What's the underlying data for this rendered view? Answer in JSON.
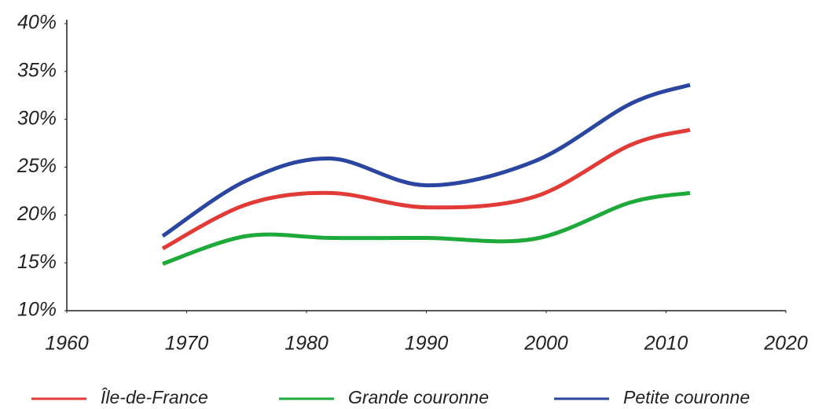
{
  "chart_data": {
    "type": "line",
    "x": [
      1968,
      1975,
      1982,
      1990,
      1999,
      2007,
      2012
    ],
    "series": [
      {
        "name": "Île-de-France",
        "color": "#e23a36",
        "values": [
          16.5,
          21.1,
          22.3,
          20.8,
          21.9,
          27.3,
          28.9
        ]
      },
      {
        "name": "Grande couronne",
        "color": "#1eaa3a",
        "values": [
          14.9,
          17.8,
          17.6,
          17.6,
          17.5,
          21.3,
          22.3
        ]
      },
      {
        "name": "Petite couronne",
        "color": "#2a46a0",
        "values": [
          17.8,
          23.6,
          25.9,
          23.1,
          25.6,
          31.6,
          33.6
        ]
      }
    ],
    "xlim": [
      1960,
      2020
    ],
    "xticks": [
      1960,
      1970,
      1980,
      1990,
      2000,
      2010,
      2020
    ],
    "ylim": [
      10,
      40
    ],
    "yticks": [
      {
        "value": 10,
        "label": "10%"
      },
      {
        "value": 15,
        "label": "15%"
      },
      {
        "value": 20,
        "label": "20%"
      },
      {
        "value": 25,
        "label": "25%"
      },
      {
        "value": 30,
        "label": "30%"
      },
      {
        "value": 35,
        "label": "35%"
      },
      {
        "value": 40,
        "label": "40%"
      }
    ],
    "grid": false,
    "legend": "bottom"
  }
}
